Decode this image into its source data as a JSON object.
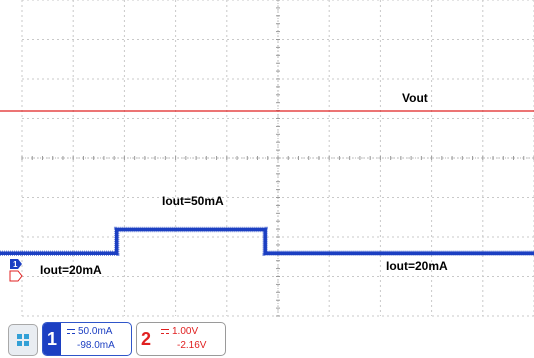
{
  "chart_data": {
    "type": "line",
    "title": "",
    "grid": true,
    "series": [
      {
        "name": "Vout",
        "channel": 2,
        "color": "#e02020",
        "x_divisions": [
          0,
          10
        ],
        "values": [
          [
            0,
            4.2
          ],
          [
            10,
            4.2
          ]
        ]
      },
      {
        "name": "Iout",
        "channel": 1,
        "color": "#1c3fc2",
        "x_divisions": [
          0,
          10
        ],
        "values": [
          [
            0,
            20
          ],
          [
            1.85,
            20
          ],
          [
            1.85,
            50
          ],
          [
            4.75,
            50
          ],
          [
            4.75,
            20
          ],
          [
            10,
            20
          ]
        ]
      }
    ],
    "annotations": [
      {
        "text": "Vout",
        "series": "Vout"
      },
      {
        "text": "Iout=50mA",
        "series": "Iout"
      },
      {
        "text": "Iout=20mA",
        "series": "Iout"
      },
      {
        "text": "Iout=20mA",
        "series": "Iout"
      }
    ],
    "ground_markers": [
      {
        "channel": 1,
        "color": "#1c3fc2"
      },
      {
        "channel": 2,
        "color": "#e02020"
      }
    ],
    "reference_level_divisions": 4.85
  },
  "channels": [
    {
      "number": "1",
      "color": "#1c3fc2",
      "scale": "50.0mA",
      "offset": "-98.0mA"
    },
    {
      "number": "2",
      "color": "#e02020",
      "scale": "1.00V",
      "offset": "-2.16V"
    }
  ],
  "menu_icon": "grid-menu-icon",
  "colors": {
    "grid": "#c9c9c9",
    "background": "#ffffff"
  }
}
